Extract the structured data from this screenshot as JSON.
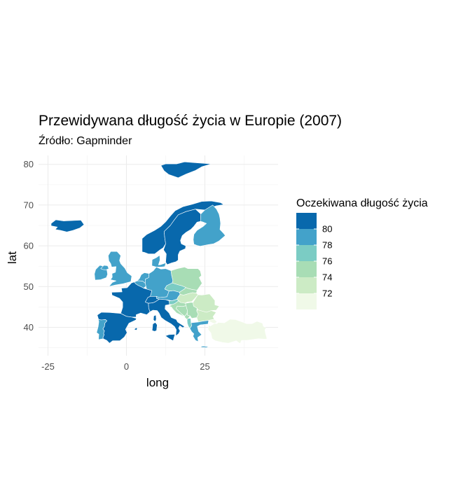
{
  "chart_data": {
    "type": "choropleth",
    "title": "Przewidywana długość życia w Europie (2007)",
    "subtitle": "Źródło: Gapminder",
    "xlabel": "long",
    "ylabel": "lat",
    "xlim": [
      -30,
      45
    ],
    "ylim": [
      34,
      82
    ],
    "x_ticks": [
      -25,
      0,
      25
    ],
    "y_ticks": [
      40,
      50,
      60,
      70,
      80
    ],
    "grid": true,
    "legend": {
      "title": "Oczekiwana długość życia",
      "position": "right",
      "labels": [
        80,
        78,
        76,
        74,
        72
      ],
      "colors": [
        "#0868ac",
        "#43a2ca",
        "#7bccc4",
        "#a8ddb5",
        "#ccebc5",
        "#f0f9e8"
      ]
    },
    "regions": [
      {
        "name": "Iceland",
        "value": 81.8
      },
      {
        "name": "Norway",
        "value": 80.2
      },
      {
        "name": "Sweden",
        "value": 80.9
      },
      {
        "name": "Finland",
        "value": 79.3
      },
      {
        "name": "Svalbard",
        "value": 80.2
      },
      {
        "name": "Ireland",
        "value": 78.9
      },
      {
        "name": "United Kingdom",
        "value": 79.4
      },
      {
        "name": "Denmark",
        "value": 78.3
      },
      {
        "name": "Netherlands",
        "value": 79.8
      },
      {
        "name": "Belgium",
        "value": 79.4
      },
      {
        "name": "Germany",
        "value": 79.4
      },
      {
        "name": "Poland",
        "value": 75.6
      },
      {
        "name": "France",
        "value": 80.7
      },
      {
        "name": "Switzerland",
        "value": 81.7
      },
      {
        "name": "Austria",
        "value": 79.8
      },
      {
        "name": "Czech Republic",
        "value": 76.5
      },
      {
        "name": "Slovakia",
        "value": 74.7
      },
      {
        "name": "Hungary",
        "value": 73.3
      },
      {
        "name": "Slovenia",
        "value": 77.9
      },
      {
        "name": "Croatia",
        "value": 75.7
      },
      {
        "name": "Bosnia and Herzegovina",
        "value": 74.9
      },
      {
        "name": "Serbia",
        "value": 74.0
      },
      {
        "name": "Montenegro",
        "value": 74.5
      },
      {
        "name": "Albania",
        "value": 76.4
      },
      {
        "name": "Romania",
        "value": 72.5
      },
      {
        "name": "Bulgaria",
        "value": 73.0
      },
      {
        "name": "Greece",
        "value": 79.5
      },
      {
        "name": "Italy",
        "value": 80.5
      },
      {
        "name": "Spain",
        "value": 80.9
      },
      {
        "name": "Portugal",
        "value": 78.1
      },
      {
        "name": "Turkey",
        "value": 71.8
      },
      {
        "name": "Sardinia",
        "value": 80.5
      },
      {
        "name": "Corsica",
        "value": 80.7
      },
      {
        "name": "Sicily",
        "value": 80.5
      },
      {
        "name": "Crete",
        "value": 79.5
      },
      {
        "name": "Mallorca",
        "value": 80.9
      },
      {
        "name": "Northern Ireland",
        "value": 79.4
      }
    ]
  }
}
